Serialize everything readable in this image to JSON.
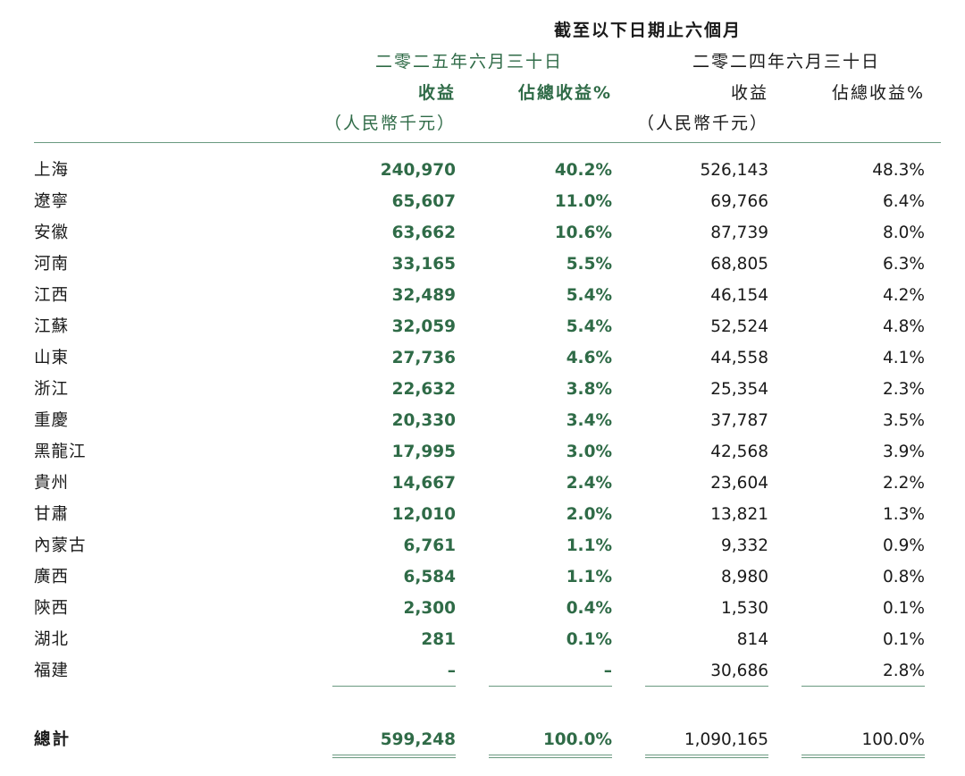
{
  "header": {
    "period": "截至以下日期止六個月",
    "date_2025": "二零二五年六月三十日",
    "date_2024": "二零二四年六月三十日",
    "revenue_label": "收益",
    "pct_label": "佔總收益%",
    "unit_label": "（人民幣千元）"
  },
  "rows": [
    {
      "region": "上海",
      "rev_2025": "240,970",
      "pct_2025": "40.2%",
      "rev_2024": "526,143",
      "pct_2024": "48.3%"
    },
    {
      "region": "遼寧",
      "rev_2025": "65,607",
      "pct_2025": "11.0%",
      "rev_2024": "69,766",
      "pct_2024": "6.4%"
    },
    {
      "region": "安徽",
      "rev_2025": "63,662",
      "pct_2025": "10.6%",
      "rev_2024": "87,739",
      "pct_2024": "8.0%"
    },
    {
      "region": "河南",
      "rev_2025": "33,165",
      "pct_2025": "5.5%",
      "rev_2024": "68,805",
      "pct_2024": "6.3%"
    },
    {
      "region": "江西",
      "rev_2025": "32,489",
      "pct_2025": "5.4%",
      "rev_2024": "46,154",
      "pct_2024": "4.2%"
    },
    {
      "region": "江蘇",
      "rev_2025": "32,059",
      "pct_2025": "5.4%",
      "rev_2024": "52,524",
      "pct_2024": "4.8%"
    },
    {
      "region": "山東",
      "rev_2025": "27,736",
      "pct_2025": "4.6%",
      "rev_2024": "44,558",
      "pct_2024": "4.1%"
    },
    {
      "region": "浙江",
      "rev_2025": "22,632",
      "pct_2025": "3.8%",
      "rev_2024": "25,354",
      "pct_2024": "2.3%"
    },
    {
      "region": "重慶",
      "rev_2025": "20,330",
      "pct_2025": "3.4%",
      "rev_2024": "37,787",
      "pct_2024": "3.5%"
    },
    {
      "region": "黑龍江",
      "rev_2025": "17,995",
      "pct_2025": "3.0%",
      "rev_2024": "42,568",
      "pct_2024": "3.9%"
    },
    {
      "region": "貴州",
      "rev_2025": "14,667",
      "pct_2025": "2.4%",
      "rev_2024": "23,604",
      "pct_2024": "2.2%"
    },
    {
      "region": "甘肅",
      "rev_2025": "12,010",
      "pct_2025": "2.0%",
      "rev_2024": "13,821",
      "pct_2024": "1.3%"
    },
    {
      "region": "內蒙古",
      "rev_2025": "6,761",
      "pct_2025": "1.1%",
      "rev_2024": "9,332",
      "pct_2024": "0.9%"
    },
    {
      "region": "廣西",
      "rev_2025": "6,584",
      "pct_2025": "1.1%",
      "rev_2024": "8,980",
      "pct_2024": "0.8%"
    },
    {
      "region": "陝西",
      "rev_2025": "2,300",
      "pct_2025": "0.4%",
      "rev_2024": "1,530",
      "pct_2024": "0.1%"
    },
    {
      "region": "湖北",
      "rev_2025": "281",
      "pct_2025": "0.1%",
      "rev_2024": "814",
      "pct_2024": "0.1%"
    },
    {
      "region": "福建",
      "rev_2025": "–",
      "pct_2025": "–",
      "rev_2024": "30,686",
      "pct_2024": "2.8%"
    }
  ],
  "total": {
    "label": "總計",
    "rev_2025": "599,248",
    "pct_2025": "100.0%",
    "rev_2024": "1,090,165",
    "pct_2024": "100.0%"
  },
  "colors": {
    "accent_green": "#2f6b47",
    "rule_green": "#6a9a80",
    "text": "#1a1a1a"
  }
}
